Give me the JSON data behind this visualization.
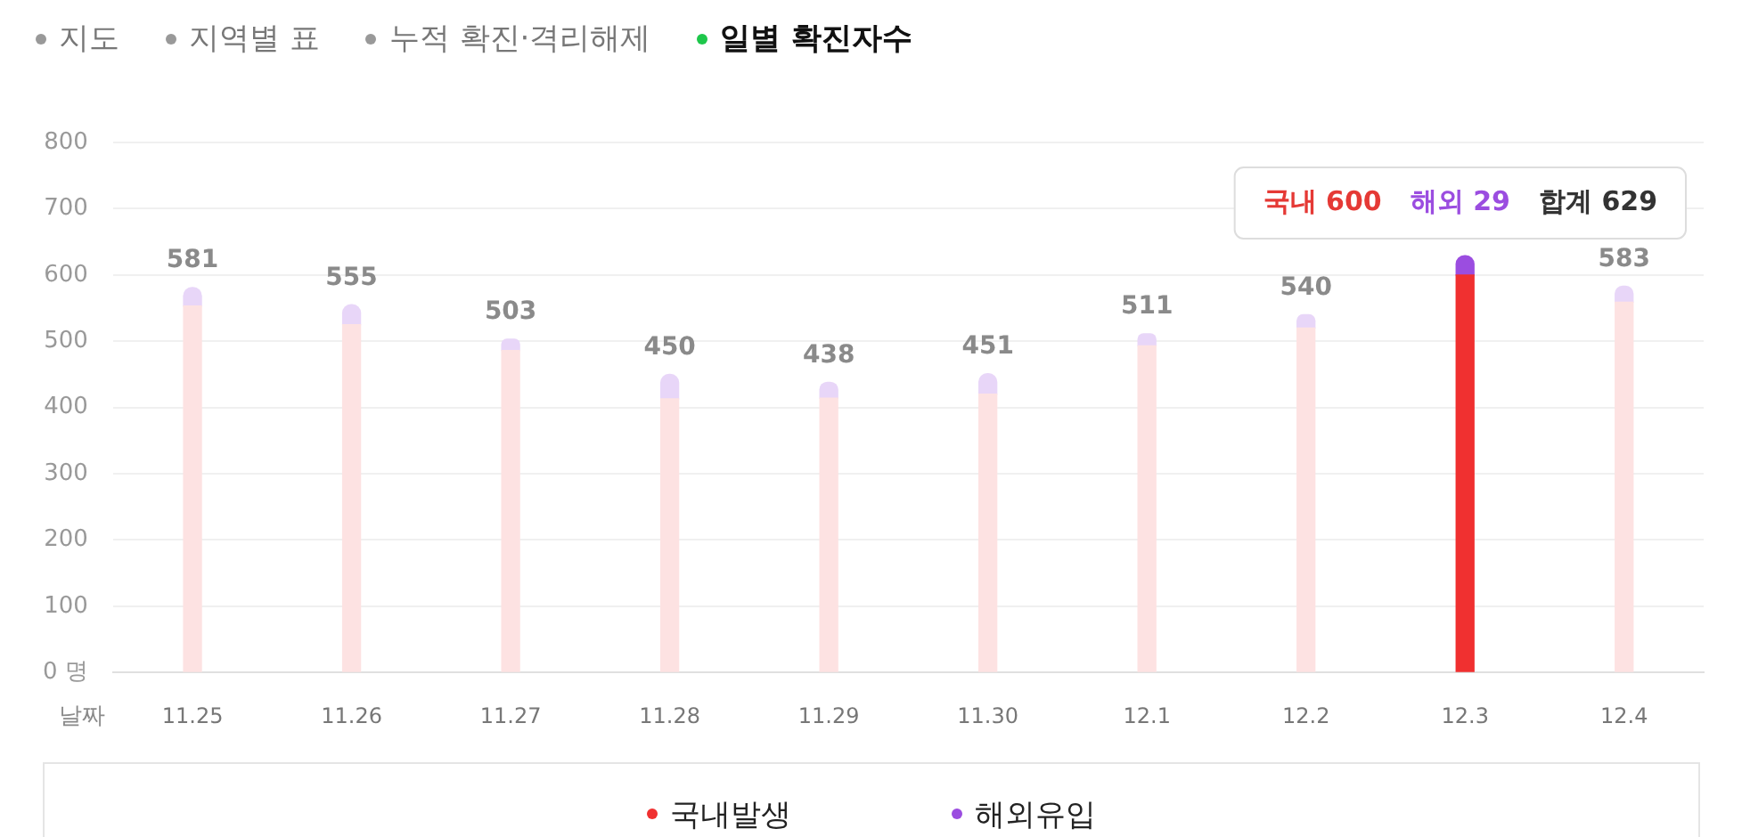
{
  "chart_data": {
    "type": "bar",
    "stacked": true,
    "xlabel": "날짜",
    "categories": [
      "11.25",
      "11.26",
      "11.27",
      "11.28",
      "11.29",
      "11.30",
      "12.1",
      "12.2",
      "12.3",
      "12.4"
    ],
    "series": [
      {
        "name": "국내발생",
        "color": "#f03030",
        "colors": [
          "#fde2e2",
          "#fde2e2",
          "#fde2e2",
          "#fde2e2",
          "#fde2e2",
          "#fde2e2",
          "#fde2e2",
          "#fde2e2",
          "#f03030",
          "#fde2e2"
        ],
        "values": [
          553,
          525,
          486,
          413,
          414,
          420,
          493,
          520,
          600,
          559
        ]
      },
      {
        "name": "해외유입",
        "color": "#9b4de0",
        "colors": [
          "#e8d6f8",
          "#e8d6f8",
          "#e8d6f8",
          "#e8d6f8",
          "#e8d6f8",
          "#e8d6f8",
          "#e8d6f8",
          "#e8d6f8",
          "#9b4de0",
          "#e8d6f8"
        ],
        "values": [
          28,
          30,
          17,
          37,
          24,
          31,
          18,
          20,
          29,
          24
        ]
      }
    ],
    "totals": [
      "581",
      "555",
      "503",
      "450",
      "438",
      "451",
      "511",
      "540",
      null,
      "583"
    ],
    "ylim": [
      0,
      800
    ],
    "yticks": [
      {
        "value": 0,
        "label": "0 명"
      },
      100,
      200,
      300,
      400,
      500,
      600,
      700,
      800
    ],
    "grid": "y",
    "legend": "bottom",
    "annotations": [
      "지도",
      "지역별 표",
      "누적 확진·격리해제",
      "일별 확진자수",
      "국내 600",
      "해외 29",
      "합계 629"
    ]
  }
}
